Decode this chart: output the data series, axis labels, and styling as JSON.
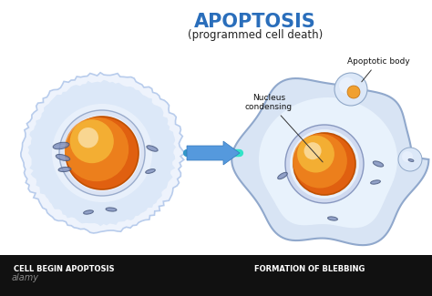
{
  "title": "APOPTOSIS",
  "subtitle": "(programmed cell death)",
  "title_color": "#2a6ebb",
  "subtitle_color": "#222222",
  "label_left": "CELL BEGIN APOPTOSIS",
  "label_right": "FORMATION OF BLEBBING",
  "annotation_nucleus": "Nucleus\ncondensing",
  "annotation_apoptotic": "Apoptotic body",
  "bg_color": "#ffffff",
  "arrow_color": "#5599cc",
  "bottom_bar_color": "#111111",
  "bottom_label_color": "#ffffff"
}
